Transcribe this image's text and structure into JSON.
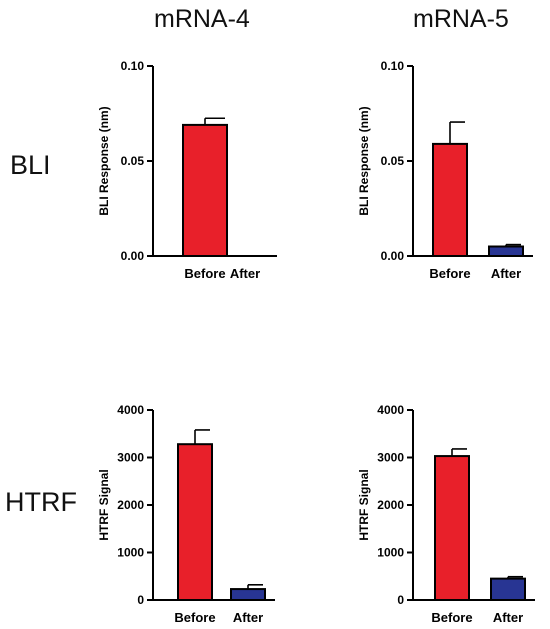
{
  "columns": [
    "mRNA-4",
    "mRNA-5"
  ],
  "rows": [
    "BLI",
    "HTRF"
  ],
  "colors": {
    "before": "#e8202a",
    "after": "#283593",
    "axis": "#000000"
  },
  "chart_data": [
    {
      "type": "bar",
      "column": "mRNA-4",
      "row": "BLI",
      "categories": [
        "Before",
        "After"
      ],
      "values": [
        0.069,
        0.0
      ],
      "errors": [
        0.0035,
        0.0
      ],
      "ylabel": "BLI Response (nm)",
      "ylim": [
        0,
        0.1
      ],
      "yticks": [
        0.0,
        0.05,
        0.1
      ],
      "ytick_labels": [
        "0.00",
        "0.05",
        "0.10"
      ]
    },
    {
      "type": "bar",
      "column": "mRNA-5",
      "row": "BLI",
      "categories": [
        "Before",
        "After"
      ],
      "values": [
        0.059,
        0.005
      ],
      "errors": [
        0.0115,
        0.001
      ],
      "ylabel": "BLI Response (nm)",
      "ylim": [
        0,
        0.1
      ],
      "yticks": [
        0.0,
        0.05,
        0.1
      ],
      "ytick_labels": [
        "0.00",
        "0.05",
        "0.10"
      ]
    },
    {
      "type": "bar",
      "column": "mRNA-4",
      "row": "HTRF",
      "categories": [
        "Before",
        "After"
      ],
      "values": [
        3280,
        230
      ],
      "errors": [
        300,
        90
      ],
      "ylabel": "HTRF Signal",
      "ylim": [
        0,
        4000
      ],
      "yticks": [
        0,
        1000,
        2000,
        3000,
        4000
      ],
      "ytick_labels": [
        "0",
        "1000",
        "2000",
        "3000",
        "4000"
      ]
    },
    {
      "type": "bar",
      "column": "mRNA-5",
      "row": "HTRF",
      "categories": [
        "Before",
        "After"
      ],
      "values": [
        3030,
        450
      ],
      "errors": [
        150,
        40
      ],
      "ylabel": "HTRF Signal",
      "ylim": [
        0,
        4000
      ],
      "yticks": [
        0,
        1000,
        2000,
        3000,
        4000
      ],
      "ytick_labels": [
        "0",
        "1000",
        "2000",
        "3000",
        "4000"
      ]
    }
  ]
}
